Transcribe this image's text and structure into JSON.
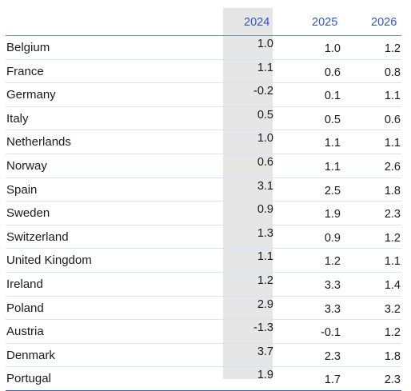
{
  "columns": [
    "2024",
    "2025",
    "2026"
  ],
  "rows": [
    {
      "country": "Belgium",
      "values": [
        "1.0",
        "1.0",
        "1.2"
      ]
    },
    {
      "country": "France",
      "values": [
        "1.1",
        "0.6",
        "0.8"
      ]
    },
    {
      "country": "Germany",
      "values": [
        "-0.2",
        "0.1",
        "1.1"
      ]
    },
    {
      "country": "Italy",
      "values": [
        "0.5",
        "0.5",
        "0.6"
      ]
    },
    {
      "country": "Netherlands",
      "values": [
        "1.0",
        "1.1",
        "1.1"
      ]
    },
    {
      "country": "Norway",
      "values": [
        "0.6",
        "1.1",
        "2.6"
      ]
    },
    {
      "country": "Spain",
      "values": [
        "3.1",
        "2.5",
        "1.8"
      ]
    },
    {
      "country": "Sweden",
      "values": [
        "0.9",
        "1.9",
        "2.3"
      ]
    },
    {
      "country": "Switzerland",
      "values": [
        "1.3",
        "0.9",
        "1.2"
      ]
    },
    {
      "country": "United Kingdom",
      "values": [
        "1.1",
        "1.2",
        "1.1"
      ]
    },
    {
      "country": "Ireland",
      "values": [
        "1.2",
        "3.3",
        "1.4"
      ]
    },
    {
      "country": "Poland",
      "values": [
        "2.9",
        "3.3",
        "3.2"
      ]
    },
    {
      "country": "Austria",
      "values": [
        "-1.3",
        "-0.1",
        "1.2"
      ]
    },
    {
      "country": "Denmark",
      "values": [
        "3.7",
        "2.3",
        "1.8"
      ]
    },
    {
      "country": "Portugal",
      "values": [
        "1.9",
        "1.7",
        "2.3"
      ]
    }
  ],
  "colors": {
    "header_text": "#2e55c8",
    "highlight_column": "#e6e6e6",
    "rule": "#3a65b8"
  }
}
